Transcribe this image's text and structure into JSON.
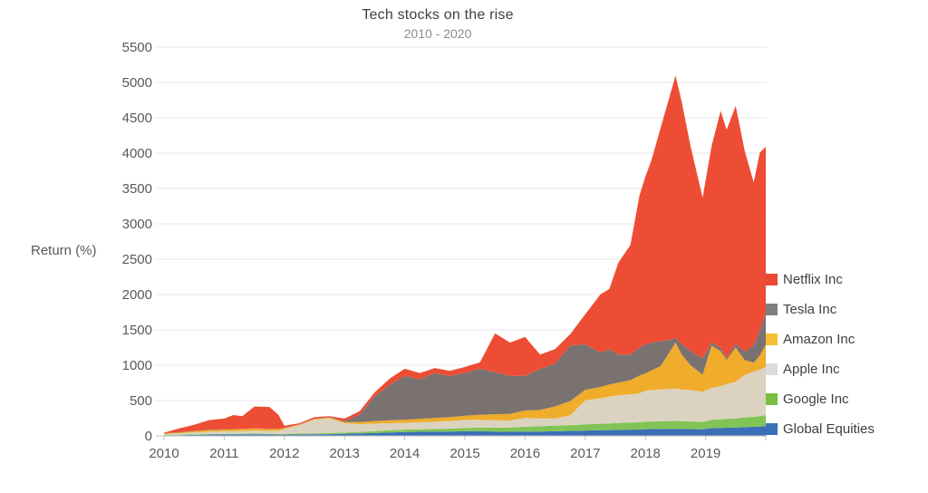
{
  "title": "Tech stocks on the rise",
  "subtitle": "2010 - 2020",
  "y_axis_title": "Return (%)",
  "colors": {
    "grid": "#e7e7e7",
    "axis_line": "#c2c2c2",
    "tick_label": "#595959",
    "title_text": "#3f3f3f",
    "subtitle_text": "#8c8c8c",
    "legend_text": "#404040"
  },
  "chart_data": {
    "type": "area",
    "stacked": true,
    "title": "Tech stocks on the rise",
    "subtitle": "2010 - 2020",
    "ylabel": "Return (%)",
    "xlabel": "",
    "ylim": [
      0,
      5500
    ],
    "yticks": [
      0,
      500,
      1000,
      1500,
      2000,
      2500,
      3000,
      3500,
      4000,
      4500,
      5000,
      5500
    ],
    "xticks": [
      2010,
      2011,
      2012,
      2013,
      2014,
      2015,
      2016,
      2017,
      2018,
      2019
    ],
    "xlim": [
      2010,
      2020
    ],
    "grid": "horizontal",
    "legend_position": "right",
    "x": [
      2010,
      2010.25,
      2010.5,
      2010.75,
      2011,
      2011.15,
      2011.3,
      2011.5,
      2011.75,
      2011.9,
      2012,
      2012.25,
      2012.5,
      2012.75,
      2013,
      2013.25,
      2013.5,
      2013.75,
      2014,
      2014.25,
      2014.5,
      2014.75,
      2015,
      2015.25,
      2015.5,
      2015.75,
      2016,
      2016.25,
      2016.5,
      2016.75,
      2017,
      2017.25,
      2017.4,
      2017.55,
      2017.75,
      2017.9,
      2018,
      2018.1,
      2018.25,
      2018.4,
      2018.5,
      2018.6,
      2018.75,
      2018.95,
      2019.1,
      2019.25,
      2019.35,
      2019.5,
      2019.65,
      2019.8,
      2019.9,
      2020
    ],
    "series": [
      {
        "name": "Global Equities",
        "color": "#3a6fb7",
        "legend_color": "#3a70b8",
        "values": [
          8,
          10,
          14,
          18,
          20,
          20,
          21,
          22,
          20,
          18,
          18,
          20,
          22,
          24,
          30,
          35,
          40,
          48,
          55,
          58,
          60,
          62,
          65,
          68,
          62,
          58,
          60,
          62,
          65,
          70,
          75,
          80,
          82,
          85,
          88,
          90,
          95,
          96,
          98,
          100,
          100,
          98,
          96,
          92,
          110,
          112,
          115,
          118,
          124,
          128,
          132,
          138
        ]
      },
      {
        "name": "Google Inc",
        "color": "#82c356",
        "legend_color": "#79be41",
        "values": [
          5,
          7,
          8,
          9,
          10,
          10,
          10,
          11,
          10,
          9,
          10,
          12,
          14,
          15,
          18,
          22,
          28,
          32,
          35,
          36,
          38,
          40,
          45,
          50,
          55,
          60,
          70,
          75,
          78,
          82,
          88,
          92,
          95,
          98,
          100,
          102,
          105,
          106,
          108,
          110,
          112,
          110,
          108,
          104,
          120,
          122,
          125,
          128,
          138,
          142,
          146,
          155
        ]
      },
      {
        "name": "Apple Inc",
        "color": "#dbd3bf",
        "legend_color": "#dcdcdc",
        "values": [
          12,
          20,
          28,
          32,
          35,
          36,
          38,
          42,
          40,
          45,
          70,
          120,
          195,
          210,
          130,
          110,
          105,
          100,
          95,
          100,
          105,
          110,
          115,
          110,
          105,
          100,
          125,
          110,
          105,
          140,
          340,
          360,
          380,
          390,
          400,
          410,
          440,
          445,
          450,
          455,
          460,
          450,
          445,
          430,
          450,
          470,
          495,
          520,
          600,
          640,
          660,
          680
        ]
      },
      {
        "name": "Amazon Inc",
        "color": "#f0ac2b",
        "legend_color": "#f5c033",
        "values": [
          8,
          12,
          18,
          22,
          25,
          26,
          28,
          30,
          28,
          25,
          15,
          10,
          10,
          12,
          20,
          30,
          35,
          40,
          45,
          48,
          50,
          55,
          60,
          70,
          85,
          95,
          105,
          120,
          170,
          200,
          150,
          160,
          170,
          180,
          200,
          250,
          245,
          280,
          330,
          520,
          650,
          500,
          350,
          240,
          600,
          496,
          340,
          484,
          210,
          125,
          200,
          322
        ]
      },
      {
        "name": "Tesla Inc",
        "color": "#7a7270",
        "legend_color": "#7f7f7f",
        "values": [
          2,
          3,
          3,
          3,
          3,
          3,
          3,
          3,
          3,
          3,
          3,
          3,
          3,
          3,
          10,
          103,
          352,
          500,
          620,
          558,
          637,
          583,
          605,
          652,
          593,
          537,
          490,
          583,
          602,
          788,
          642,
          488,
          498,
          397,
          362,
          398,
          410,
          393,
          354,
          175,
          63,
          142,
          201,
          234,
          40,
          50,
          25,
          50,
          120,
          250,
          350,
          450
        ]
      },
      {
        "name": "Netflix Inc",
        "color": "#ee4d35",
        "legend_color": "#ee4a33",
        "values": [
          10,
          54,
          85,
          140,
          152,
          200,
          180,
          307,
          309,
          200,
          29,
          15,
          21,
          16,
          37,
          50,
          55,
          90,
          100,
          90,
          70,
          70,
          85,
          90,
          550,
          470,
          550,
          200,
          210,
          160,
          425,
          820,
          855,
          1300,
          1550,
          2150,
          2375,
          2580,
          3010,
          3440,
          3715,
          3440,
          2900,
          2270,
          2780,
          3350,
          3230,
          3370,
          2838,
          2301,
          2520,
          2345
        ]
      }
    ]
  }
}
